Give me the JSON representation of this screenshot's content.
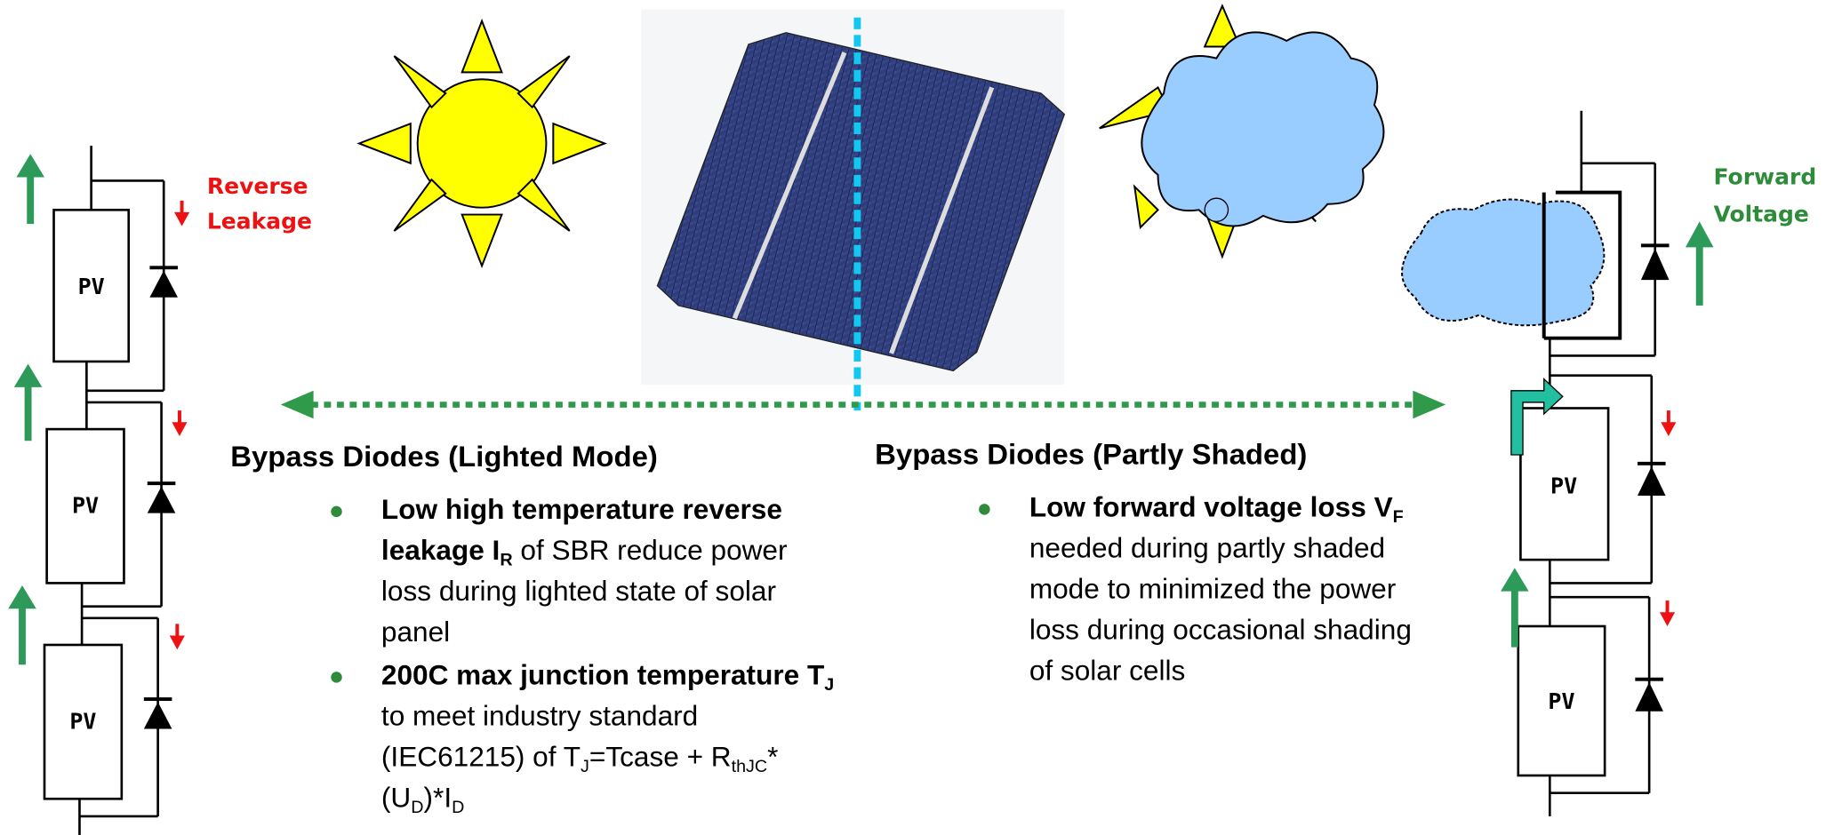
{
  "left_circuit": {
    "pv_labels": [
      "PV",
      "PV",
      "PV"
    ],
    "annotation": [
      "Reverse",
      "Leakage"
    ]
  },
  "right_circuit": {
    "pv_labels": [
      "PV",
      "PV"
    ],
    "annotation": [
      "Forward",
      "Voltage"
    ]
  },
  "left_panel": {
    "heading": "Bypass Diodes (Lighted Mode)",
    "bullets": [
      [
        "Low high temperature reverse leakage I",
        "R",
        " of SBR reduce power loss during lighted state of solar panel"
      ],
      [
        "200C max junction temperature T",
        "J",
        " to meet industry standard (IEC61215) of T",
        "J",
        "=Tcase + R",
        "thJC",
        "*(U",
        "D",
        ")*I",
        "D"
      ]
    ]
  },
  "right_panel": {
    "heading": "Bypass Diodes (Partly Shaded)",
    "bullets": [
      [
        "Low forward voltage loss V",
        "F",
        " needed during partly shaded mode to minimized the power loss during occasional shading of solar cells"
      ]
    ]
  }
}
